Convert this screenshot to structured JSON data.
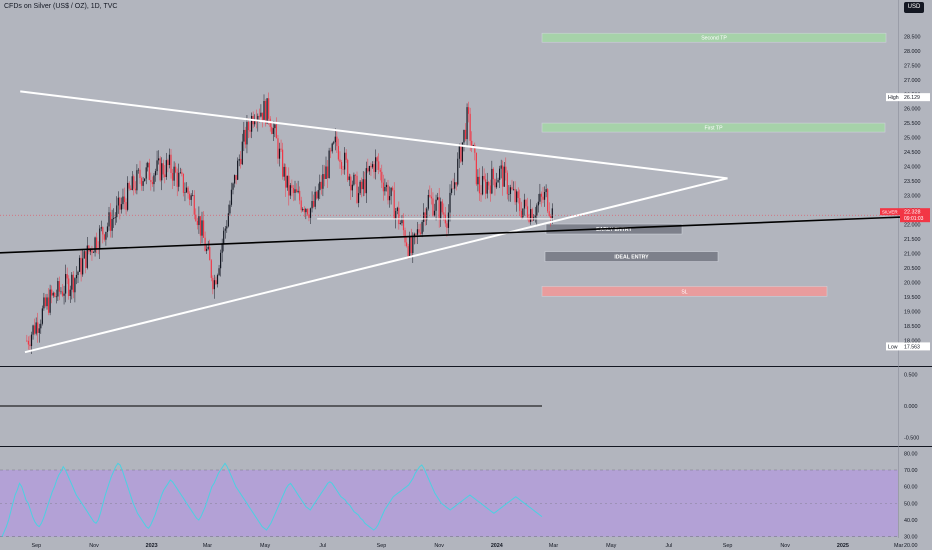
{
  "header": {
    "symbol_title": "CFDs on Silver (US$ / OZ), 1D, TVC",
    "currency": "USD"
  },
  "colors": {
    "background": "#b2b5be",
    "candle_up": "#131722",
    "candle_down": "#f23645",
    "trendline": "#ffffff",
    "long_line": "#000000",
    "tp_fill": "#a5d6a7",
    "entry_fill": "#787b86",
    "sl_fill": "#ef9a9a",
    "rsi_band": "#b39ddb",
    "rsi_line": "#4dd0e1"
  },
  "chart_data": [
    {
      "type": "candlestick",
      "ylim": [
        17.4,
        29.2
      ],
      "y_ticks": [
        "28.500",
        "28.000",
        "27.500",
        "27.000",
        "26.500",
        "26.000",
        "25.500",
        "25.000",
        "24.500",
        "24.000",
        "23.500",
        "23.000",
        "22.500",
        "22.000",
        "21.500",
        "21.000",
        "20.500",
        "20.000",
        "19.500",
        "19.000",
        "18.500",
        "18.000"
      ],
      "x_ticks": [
        "Sep",
        "Nov",
        "2023",
        "Mar",
        "May",
        "Jul",
        "Sep",
        "Nov",
        "2024",
        "Mar",
        "May",
        "Jul",
        "Sep",
        "Nov",
        "2025",
        "Mar"
      ],
      "markers": {
        "high": {
          "label": "High",
          "value": "26.129"
        },
        "low": {
          "label": "Low",
          "value": "17.563"
        },
        "last": {
          "symbol": "SILVER",
          "price": "22.328",
          "countdown": "09:01:03",
          "value": 22.328
        }
      },
      "trend_points": [
        [
          "2022-08-22",
          18.0
        ],
        [
          "2022-09-15",
          19.4
        ],
        [
          "2022-10-10",
          20.1
        ],
        [
          "2022-11-01",
          21.4
        ],
        [
          "2022-11-25",
          22.4
        ],
        [
          "2022-12-20",
          23.7
        ],
        [
          "2023-01-20",
          24.0
        ],
        [
          "2023-02-15",
          22.8
        ],
        [
          "2023-03-08",
          20.0
        ],
        [
          "2023-04-05",
          24.5
        ],
        [
          "2023-04-20",
          26.0
        ],
        [
          "2023-05-05",
          25.9
        ],
        [
          "2023-05-25",
          23.2
        ],
        [
          "2023-06-20",
          22.5
        ],
        [
          "2023-07-15",
          24.8
        ],
        [
          "2023-08-08",
          23.0
        ],
        [
          "2023-08-25",
          24.2
        ],
        [
          "2023-09-15",
          22.6
        ],
        [
          "2023-10-03",
          21.0
        ],
        [
          "2023-10-20",
          22.9
        ],
        [
          "2023-11-10",
          22.3
        ],
        [
          "2023-12-01",
          25.7
        ],
        [
          "2023-12-13",
          23.2
        ],
        [
          "2024-01-05",
          23.8
        ],
        [
          "2024-01-25",
          22.6
        ],
        [
          "2024-02-08",
          22.5
        ],
        [
          "2024-02-22",
          23.0
        ],
        [
          "2024-03-01",
          22.3
        ]
      ],
      "drawings": [
        {
          "type": "trendline",
          "name": "upper",
          "points": [
            [
              "2022-08-15",
              26.6
            ],
            [
              "2024-09-01",
              23.6
            ]
          ]
        },
        {
          "type": "trendline",
          "name": "lower",
          "points": [
            [
              "2022-08-20",
              17.6
            ],
            [
              "2024-09-01",
              23.6
            ]
          ]
        },
        {
          "type": "trendline",
          "name": "long",
          "points": [
            [
              "2022-07-01",
              21.0
            ],
            [
              "2025-04-01",
              22.3
            ]
          ]
        },
        {
          "type": "trendline",
          "name": "support",
          "points": [
            [
              "2023-06-25",
              22.2
            ],
            [
              "2024-03-01",
              22.2
            ]
          ]
        }
      ],
      "zones": [
        {
          "label": "Second TP",
          "value": 28.45
        },
        {
          "label": "First TP",
          "value": 25.35
        },
        {
          "label": "EARLY ENTRY",
          "value": 21.85
        },
        {
          "label": "IDEAL ENTRY",
          "value": 20.9
        },
        {
          "label": "SL",
          "value": 19.7
        }
      ]
    },
    {
      "type": "line",
      "ylim": [
        -0.6,
        0.6
      ],
      "y_ticks": [
        "0.500",
        "0.000",
        "-0.500"
      ],
      "values": [
        0.0
      ]
    },
    {
      "type": "line",
      "name": "RSI",
      "ylim": [
        28,
        82
      ],
      "y_ticks": [
        "80.00",
        "70.00",
        "60.00",
        "50.00",
        "40.00",
        "30.00",
        "20.00"
      ],
      "band": [
        30,
        70
      ],
      "values": [
        30,
        33,
        36,
        40,
        45,
        50,
        55,
        58,
        62,
        60,
        56,
        52,
        50,
        46,
        42,
        39,
        37,
        36,
        38,
        41,
        45,
        49,
        53,
        57,
        60,
        64,
        67,
        69,
        72,
        70,
        67,
        64,
        61,
        58,
        55,
        53,
        51,
        49,
        47,
        45,
        43,
        41,
        39,
        38,
        40,
        44,
        49,
        54,
        58,
        62,
        66,
        69,
        72,
        74,
        73,
        70,
        66,
        62,
        58,
        54,
        50,
        47,
        44,
        42,
        40,
        38,
        36,
        35,
        37,
        40,
        43,
        47,
        51,
        55,
        58,
        60,
        62,
        64,
        63,
        61,
        59,
        57,
        55,
        53,
        51,
        49,
        47,
        45,
        43,
        41,
        40,
        42,
        45,
        48,
        52,
        56,
        60,
        62,
        65,
        68,
        70,
        72,
        74,
        72,
        69,
        66,
        63,
        60,
        58,
        56,
        54,
        52,
        50,
        48,
        46,
        44,
        42,
        40,
        38,
        36,
        35,
        34,
        36,
        38,
        41,
        44,
        47,
        50,
        53,
        56,
        59,
        61,
        62,
        60,
        58,
        56,
        54,
        52,
        50,
        48,
        47,
        46,
        48,
        50,
        52,
        54,
        56,
        58,
        60,
        62,
        63,
        62,
        60,
        58,
        56,
        54,
        53,
        52,
        50,
        49,
        47,
        45,
        44,
        43,
        41,
        40,
        38,
        37,
        36,
        35,
        34,
        35,
        37,
        40,
        43,
        46,
        48,
        50,
        52,
        54,
        55,
        56,
        57,
        58,
        59,
        60,
        61,
        63,
        65,
        68,
        70,
        72,
        73,
        71,
        68,
        65,
        62,
        59,
        56,
        54,
        52,
        50,
        49,
        48,
        47,
        46,
        47,
        48,
        49,
        50,
        51,
        52,
        53,
        54,
        55,
        54,
        53,
        52,
        51,
        50,
        49,
        48,
        47,
        46,
        45,
        44,
        45,
        46,
        47,
        48,
        49,
        50,
        51,
        52,
        53,
        54,
        53,
        52,
        51,
        50,
        49,
        48,
        47,
        46,
        45,
        44,
        43,
        42
      ]
    }
  ]
}
